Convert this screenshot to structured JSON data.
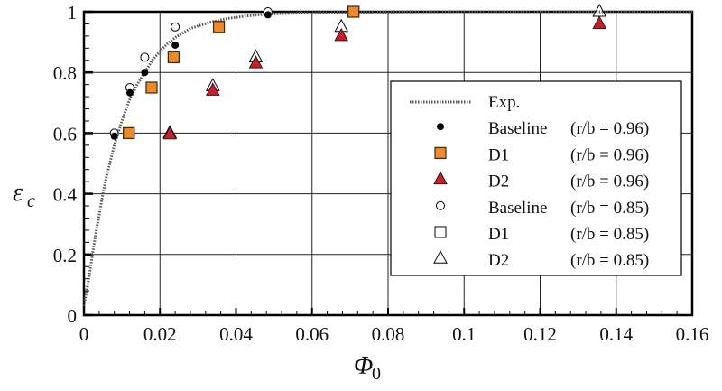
{
  "chart_data": {
    "type": "scatter",
    "xlabel": "Φ",
    "xlabel_sub": "0",
    "ylabel": "ε",
    "ylabel_sub": "c",
    "xlim": [
      0,
      0.16
    ],
    "ylim": [
      0,
      1
    ],
    "xticks": [
      "0",
      "0.02",
      "0.04",
      "0.06",
      "0.08",
      "0.1",
      "0.12",
      "0.14",
      "0.16"
    ],
    "yticks": [
      "0",
      "0.2",
      "0.4",
      "0.6",
      "0.8",
      "1"
    ],
    "grid": true,
    "legend_position": "center-right",
    "series": [
      {
        "name": "Exp.",
        "cond": "",
        "marker": "dotted-line",
        "color": "#555555",
        "x": [
          0,
          0.001,
          0.002,
          0.003,
          0.004,
          0.005,
          0.006,
          0.007,
          0.008,
          0.009,
          0.01,
          0.012,
          0.014,
          0.016,
          0.018,
          0.02,
          0.022,
          0.024,
          0.026,
          0.028,
          0.03,
          0.034,
          0.038,
          0.042,
          0.046,
          0.05,
          0.06,
          0.07,
          0.08,
          0.1,
          0.12,
          0.14,
          0.16
        ],
        "y": [
          0.03,
          0.1,
          0.18,
          0.26,
          0.33,
          0.4,
          0.46,
          0.51,
          0.56,
          0.6,
          0.64,
          0.71,
          0.76,
          0.8,
          0.84,
          0.87,
          0.895,
          0.915,
          0.93,
          0.945,
          0.953,
          0.968,
          0.978,
          0.985,
          0.99,
          0.993,
          0.997,
          0.998,
          0.999,
          1,
          1,
          1,
          1
        ]
      },
      {
        "name": "Baseline",
        "cond": "(r/b = 0.96)",
        "marker": "filled-circle",
        "color": "#000000",
        "x": [
          0.008,
          0.0121,
          0.016,
          0.024,
          0.0484
        ],
        "y": [
          0.59,
          0.733,
          0.8,
          0.89,
          0.99
        ]
      },
      {
        "name": "D1",
        "cond": "(r/b = 0.96)",
        "marker": "filled-square",
        "color": "#f0892a",
        "x": [
          0.0118,
          0.0178,
          0.0236,
          0.0355,
          0.0709
        ],
        "y": [
          0.6,
          0.75,
          0.85,
          0.95,
          1.0
        ]
      },
      {
        "name": "D2",
        "cond": "(r/b = 0.96)",
        "marker": "filled-triangle",
        "color": "#c8202a",
        "x": [
          0.0226,
          0.0339,
          0.0452,
          0.0677,
          0.1356
        ],
        "y": [
          0.596,
          0.74,
          0.83,
          0.92,
          0.96
        ]
      },
      {
        "name": "Baseline",
        "cond": "(r/b = 0.85)",
        "marker": "open-circle",
        "color": "#000000",
        "x": [
          0.008,
          0.0121,
          0.016,
          0.024,
          0.0484
        ],
        "y": [
          0.6,
          0.75,
          0.85,
          0.95,
          1.0
        ]
      },
      {
        "name": "D1",
        "cond": "(r/b = 0.85)",
        "marker": "open-square",
        "color": "#000000",
        "x": [
          0.0118,
          0.0178,
          0.0236,
          0.0355,
          0.0709
        ],
        "y": [
          0.6,
          0.75,
          0.85,
          0.95,
          1.0
        ]
      },
      {
        "name": "D2",
        "cond": "(r/b = 0.85)",
        "marker": "open-triangle",
        "color": "#000000",
        "x": [
          0.0226,
          0.0339,
          0.0452,
          0.0677,
          0.1356
        ],
        "y": [
          0.6,
          0.755,
          0.85,
          0.95,
          1.0
        ]
      }
    ]
  }
}
